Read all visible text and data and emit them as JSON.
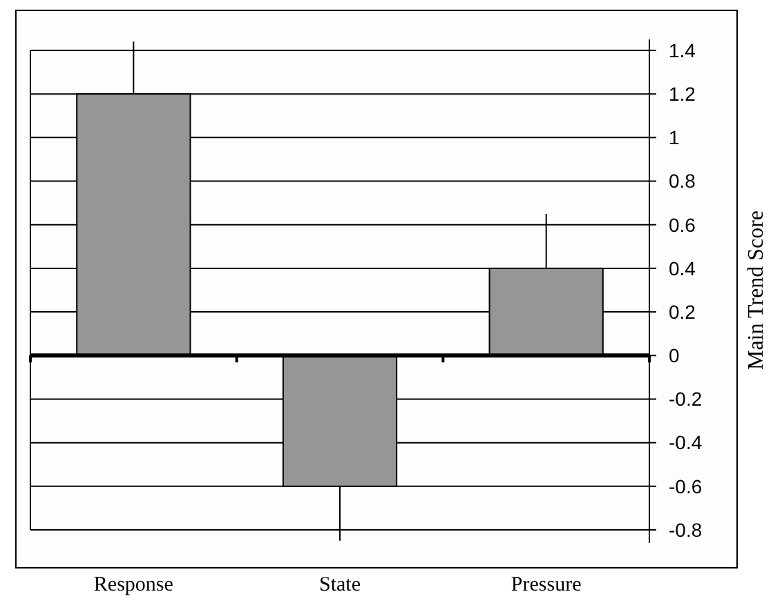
{
  "chart_data": {
    "type": "bar",
    "ylabel": "Main Trend Score",
    "categories": [
      "Response",
      "State",
      "Pressure"
    ],
    "values": [
      1.2,
      -0.6,
      0.4
    ],
    "color": "#969696",
    "errors": [
      [
        1.2,
        1.44
      ],
      [
        -0.85,
        -0.6
      ],
      [
        0.4,
        0.65
      ]
    ],
    "ylim": [
      -0.86,
      1.45
    ],
    "yticks": [
      -0.8,
      -0.6,
      -0.4,
      -0.2,
      0,
      0.2,
      0.4,
      0.6,
      0.8,
      1,
      1.2,
      1.4
    ],
    "grid": "y"
  }
}
